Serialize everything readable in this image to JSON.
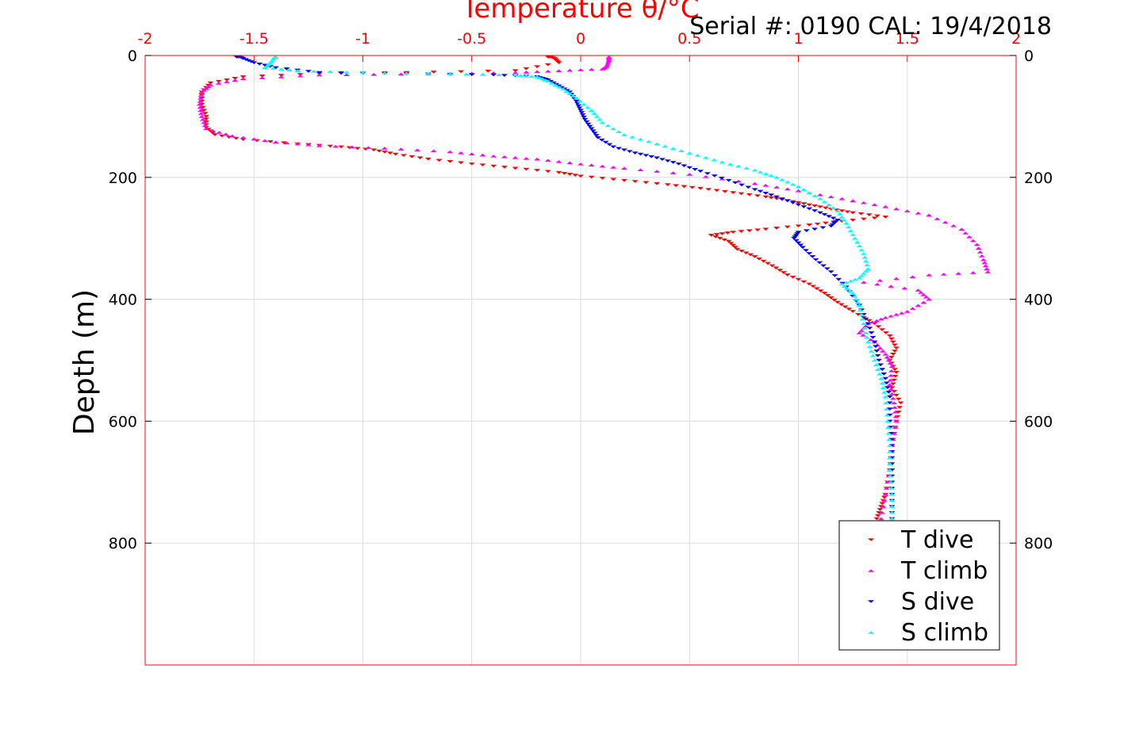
{
  "header": {
    "serial": "Serial #: 0190  CAL: 19/4/2018"
  },
  "chart_data": {
    "type": "scatter",
    "title": "",
    "xlabel": "Temperature θ/°C",
    "ylabel": "Depth (m)",
    "xlim": [
      -2,
      2
    ],
    "ylim": [
      0,
      1000
    ],
    "y_reversed": true,
    "x_ticks": [
      "-2",
      "-1.5",
      "-1",
      "-0.5",
      "0",
      "0.5",
      "1",
      "1.5",
      "2"
    ],
    "y_ticks": [
      "0",
      "200",
      "400",
      "600",
      "800"
    ],
    "grid": true,
    "legend_position": "bottom-right",
    "colors": {
      "axis": "#ff0000",
      "grid": "#dcdcdc"
    },
    "series": [
      {
        "name": "T dive",
        "color": "#ff0000",
        "marker": "triangle-down",
        "points": [
          [
            -0.15,
            0
          ],
          [
            -0.12,
            5
          ],
          [
            -0.1,
            12
          ],
          [
            -0.3,
            25
          ],
          [
            -0.8,
            28
          ],
          [
            -1.2,
            30
          ],
          [
            -1.55,
            35
          ],
          [
            -1.7,
            45
          ],
          [
            -1.74,
            60
          ],
          [
            -1.74,
            80
          ],
          [
            -1.72,
            100
          ],
          [
            -1.72,
            118
          ],
          [
            -1.68,
            130
          ],
          [
            -1.55,
            138
          ],
          [
            -1.3,
            145
          ],
          [
            -1.1,
            150
          ],
          [
            -0.95,
            155
          ],
          [
            -0.85,
            162
          ],
          [
            -0.7,
            170
          ],
          [
            -0.5,
            178
          ],
          [
            -0.3,
            185
          ],
          [
            -0.1,
            192
          ],
          [
            0.0,
            198
          ],
          [
            0.2,
            205
          ],
          [
            0.4,
            212
          ],
          [
            0.55,
            218
          ],
          [
            0.7,
            225
          ],
          [
            0.85,
            232
          ],
          [
            0.95,
            238
          ],
          [
            1.05,
            245
          ],
          [
            1.15,
            252
          ],
          [
            1.25,
            258
          ],
          [
            1.4,
            265
          ],
          [
            1.2,
            272
          ],
          [
            1.05,
            278
          ],
          [
            0.85,
            285
          ],
          [
            0.7,
            290
          ],
          [
            0.6,
            295
          ],
          [
            0.68,
            305
          ],
          [
            0.72,
            318
          ],
          [
            0.8,
            330
          ],
          [
            0.88,
            345
          ],
          [
            0.95,
            360
          ],
          [
            1.05,
            375
          ],
          [
            1.12,
            390
          ],
          [
            1.18,
            405
          ],
          [
            1.25,
            420
          ],
          [
            1.35,
            440
          ],
          [
            1.42,
            460
          ],
          [
            1.45,
            480
          ],
          [
            1.42,
            500
          ],
          [
            1.45,
            520
          ],
          [
            1.43,
            545
          ],
          [
            1.47,
            570
          ],
          [
            1.45,
            600
          ],
          [
            1.43,
            640
          ],
          [
            1.42,
            680
          ],
          [
            1.4,
            720
          ],
          [
            1.38,
            740
          ],
          [
            1.36,
            760
          ]
        ]
      },
      {
        "name": "T climb",
        "color": "#ff00ff",
        "marker": "triangle-up",
        "points": [
          [
            0.13,
            0
          ],
          [
            0.13,
            8
          ],
          [
            0.12,
            18
          ],
          [
            0.1,
            22
          ],
          [
            -0.1,
            25
          ],
          [
            -0.3,
            28
          ],
          [
            -0.7,
            30
          ],
          [
            -1.2,
            32
          ],
          [
            -1.55,
            38
          ],
          [
            -1.7,
            48
          ],
          [
            -1.74,
            60
          ],
          [
            -1.75,
            80
          ],
          [
            -1.74,
            100
          ],
          [
            -1.72,
            120
          ],
          [
            -1.6,
            132
          ],
          [
            -1.4,
            142
          ],
          [
            -1.2,
            148
          ],
          [
            -0.9,
            152
          ],
          [
            -0.6,
            158
          ],
          [
            -0.4,
            165
          ],
          [
            -0.2,
            170
          ],
          [
            0.0,
            178
          ],
          [
            0.2,
            185
          ],
          [
            0.5,
            195
          ],
          [
            0.8,
            210
          ],
          [
            1.0,
            222
          ],
          [
            1.2,
            235
          ],
          [
            1.4,
            248
          ],
          [
            1.6,
            262
          ],
          [
            1.75,
            285
          ],
          [
            1.82,
            310
          ],
          [
            1.85,
            335
          ],
          [
            1.87,
            355
          ],
          [
            1.6,
            360
          ],
          [
            1.3,
            372
          ],
          [
            1.55,
            385
          ],
          [
            1.6,
            400
          ],
          [
            1.5,
            420
          ],
          [
            1.4,
            430
          ],
          [
            1.32,
            440
          ],
          [
            1.28,
            455
          ],
          [
            1.35,
            470
          ],
          [
            1.4,
            490
          ],
          [
            1.43,
            510
          ],
          [
            1.42,
            540
          ],
          [
            1.44,
            570
          ],
          [
            1.45,
            600
          ],
          [
            1.43,
            640
          ],
          [
            1.42,
            680
          ],
          [
            1.4,
            720
          ],
          [
            1.38,
            760
          ]
        ]
      },
      {
        "name": "S dive",
        "color": "#0000ff",
        "marker": "triangle-down",
        "points": [
          [
            -1.58,
            0
          ],
          [
            -1.55,
            5
          ],
          [
            -1.5,
            12
          ],
          [
            -1.4,
            20
          ],
          [
            -1.2,
            28
          ],
          [
            -0.8,
            30
          ],
          [
            -0.4,
            32
          ],
          [
            -0.2,
            35
          ],
          [
            -0.15,
            40
          ],
          [
            -0.1,
            50
          ],
          [
            -0.05,
            60
          ],
          [
            -0.02,
            75
          ],
          [
            0.0,
            90
          ],
          [
            0.02,
            105
          ],
          [
            0.05,
            120
          ],
          [
            0.08,
            135
          ],
          [
            0.15,
            150
          ],
          [
            0.25,
            160
          ],
          [
            0.35,
            168
          ],
          [
            0.45,
            178
          ],
          [
            0.55,
            190
          ],
          [
            0.68,
            205
          ],
          [
            0.8,
            220
          ],
          [
            0.9,
            232
          ],
          [
            1.0,
            245
          ],
          [
            1.1,
            258
          ],
          [
            1.18,
            270
          ],
          [
            1.15,
            280
          ],
          [
            1.0,
            290
          ],
          [
            0.98,
            300
          ],
          [
            1.02,
            315
          ],
          [
            1.08,
            335
          ],
          [
            1.15,
            355
          ],
          [
            1.22,
            380
          ],
          [
            1.28,
            410
          ],
          [
            1.32,
            440
          ],
          [
            1.35,
            470
          ],
          [
            1.37,
            500
          ],
          [
            1.4,
            530
          ],
          [
            1.42,
            560
          ],
          [
            1.42,
            600
          ],
          [
            1.43,
            640
          ],
          [
            1.43,
            680
          ],
          [
            1.43,
            720
          ],
          [
            1.43,
            760
          ]
        ]
      },
      {
        "name": "S climb",
        "color": "#00ffff",
        "marker": "triangle-up",
        "points": [
          [
            -1.4,
            0
          ],
          [
            -1.42,
            10
          ],
          [
            -1.45,
            20
          ],
          [
            -1.3,
            25
          ],
          [
            -1.0,
            28
          ],
          [
            -0.6,
            30
          ],
          [
            -0.3,
            32
          ],
          [
            -0.2,
            35
          ],
          [
            -0.15,
            42
          ],
          [
            -0.08,
            55
          ],
          [
            -0.02,
            70
          ],
          [
            0.05,
            90
          ],
          [
            0.1,
            110
          ],
          [
            0.2,
            130
          ],
          [
            0.35,
            145
          ],
          [
            0.5,
            160
          ],
          [
            0.65,
            175
          ],
          [
            0.8,
            188
          ],
          [
            0.9,
            200
          ],
          [
            1.0,
            215
          ],
          [
            1.1,
            235
          ],
          [
            1.18,
            255
          ],
          [
            1.22,
            275
          ],
          [
            1.26,
            300
          ],
          [
            1.3,
            325
          ],
          [
            1.32,
            350
          ],
          [
            1.28,
            365
          ],
          [
            1.2,
            375
          ],
          [
            1.25,
            390
          ],
          [
            1.28,
            410
          ],
          [
            1.3,
            440
          ],
          [
            1.32,
            470
          ],
          [
            1.35,
            500
          ],
          [
            1.38,
            530
          ],
          [
            1.4,
            560
          ],
          [
            1.41,
            600
          ],
          [
            1.42,
            640
          ],
          [
            1.42,
            680
          ],
          [
            1.43,
            720
          ],
          [
            1.43,
            760
          ]
        ]
      }
    ]
  }
}
